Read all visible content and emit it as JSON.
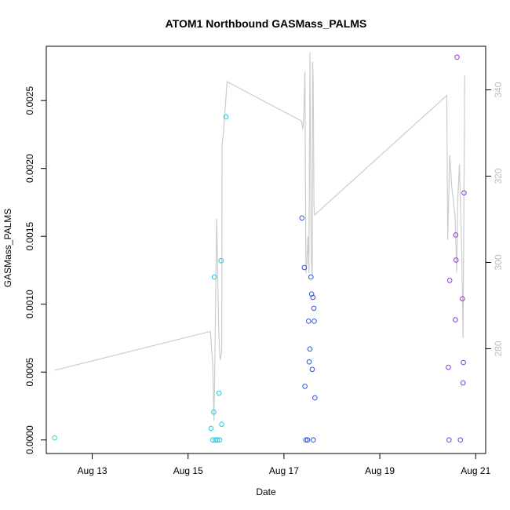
{
  "chart_data": {
    "type": "scatter",
    "title": "ATOM1 Northbound GASMass_PALMS",
    "xlabel": "Date",
    "ylabel": "GASMass_PALMS",
    "x_axis": {
      "type": "date",
      "range": [
        "2016-08-12T01:00",
        "2016-08-21T05:00"
      ],
      "ticks": [
        "2016-08-13",
        "2016-08-15",
        "2016-08-17",
        "2016-08-19",
        "2016-08-21"
      ],
      "tick_labels": [
        "Aug 13",
        "Aug 15",
        "Aug 17",
        "Aug 19",
        "Aug 21"
      ]
    },
    "y_axis": {
      "range": [
        -0.0001,
        0.0029
      ],
      "ticks": [
        0,
        0.0005,
        0.001,
        0.0015,
        0.002,
        0.0025
      ],
      "tick_labels": [
        "0.0000",
        "0.0005",
        "0.0010",
        "0.0015",
        "0.0020",
        "0.0025"
      ]
    },
    "y2_axis": {
      "range": [
        255.7,
        350.1
      ],
      "ticks": [
        280,
        300,
        320,
        340
      ],
      "tick_labels": [
        "280",
        "300",
        "320",
        "340"
      ],
      "color": "#bdbdbd"
    },
    "grid": false,
    "legend": "none",
    "point_series": [
      {
        "color": "#35d8d0",
        "points": [
          {
            "x": "2016-08-12T05:10",
            "y": 1.5e-05
          }
        ]
      },
      {
        "color": "#1ec8e8",
        "points": [
          {
            "x": "2016-08-15T11:30",
            "y": 8.5e-05
          },
          {
            "x": "2016-08-15T12:20",
            "y": 0.0
          },
          {
            "x": "2016-08-15T12:50",
            "y": 0.000205
          },
          {
            "x": "2016-08-15T13:10",
            "y": 0.0012
          },
          {
            "x": "2016-08-15T13:40",
            "y": 0.0
          },
          {
            "x": "2016-08-15T14:40",
            "y": 0.0
          },
          {
            "x": "2016-08-15T15:30",
            "y": 0.000345
          },
          {
            "x": "2016-08-15T15:50",
            "y": 0.0
          },
          {
            "x": "2016-08-15T16:30",
            "y": 0.00132
          },
          {
            "x": "2016-08-15T16:50",
            "y": 0.000115
          },
          {
            "x": "2016-08-15T19:00",
            "y": 0.00238
          }
        ]
      },
      {
        "color": "#2f56e0",
        "points": [
          {
            "x": "2016-08-17T09:00",
            "y": 0.001635
          },
          {
            "x": "2016-08-17T10:10",
            "y": 0.00127
          },
          {
            "x": "2016-08-17T10:30",
            "y": 0.000395
          },
          {
            "x": "2016-08-17T11:00",
            "y": 0.0
          },
          {
            "x": "2016-08-17T11:50",
            "y": 0.0
          },
          {
            "x": "2016-08-17T12:20",
            "y": 0.000875
          },
          {
            "x": "2016-08-17T12:40",
            "y": 0.000575
          },
          {
            "x": "2016-08-17T13:00",
            "y": 0.00067
          },
          {
            "x": "2016-08-17T13:30",
            "y": 0.0012
          },
          {
            "x": "2016-08-17T13:50",
            "y": 0.001075
          },
          {
            "x": "2016-08-17T14:10",
            "y": 0.00052
          },
          {
            "x": "2016-08-17T14:30",
            "y": 0.00105
          },
          {
            "x": "2016-08-17T14:40",
            "y": 0.0
          },
          {
            "x": "2016-08-17T15:00",
            "y": 0.00097
          },
          {
            "x": "2016-08-17T15:10",
            "y": 0.000875
          },
          {
            "x": "2016-08-17T15:30",
            "y": 0.00031
          }
        ]
      },
      {
        "color": "#8a3ad8",
        "points": [
          {
            "x": "2016-08-20T10:20",
            "y": 0.000535
          },
          {
            "x": "2016-08-20T10:40",
            "y": 0.0
          },
          {
            "x": "2016-08-20T11:00",
            "y": 0.001175
          },
          {
            "x": "2016-08-20T13:50",
            "y": 0.000885
          },
          {
            "x": "2016-08-20T14:00",
            "y": 0.00151
          },
          {
            "x": "2016-08-20T14:10",
            "y": 0.001325
          },
          {
            "x": "2016-08-20T14:40",
            "y": 0.00282
          },
          {
            "x": "2016-08-20T16:20",
            "y": 0.0
          },
          {
            "x": "2016-08-20T17:20",
            "y": 0.00104
          },
          {
            "x": "2016-08-20T17:40",
            "y": 0.00042
          },
          {
            "x": "2016-08-20T17:50",
            "y": 0.00057
          },
          {
            "x": "2016-08-20T18:10",
            "y": 0.00182
          }
        ]
      }
    ],
    "line_series": {
      "color": "#cccccc",
      "axis": "right",
      "points": [
        {
          "x": "2016-08-12T05:10",
          "y": 275.0
        },
        {
          "x": "2016-08-15T11:10",
          "y": 284.0
        },
        {
          "x": "2016-08-15T12:20",
          "y": 276.4
        },
        {
          "x": "2016-08-15T13:00",
          "y": 263.3
        },
        {
          "x": "2016-08-15T14:20",
          "y": 310.1
        },
        {
          "x": "2016-08-15T15:20",
          "y": 283.9
        },
        {
          "x": "2016-08-15T16:00",
          "y": 277.3
        },
        {
          "x": "2016-08-15T16:50",
          "y": 279.4
        },
        {
          "x": "2016-08-15T17:00",
          "y": 327.2
        },
        {
          "x": "2016-08-15T17:40",
          "y": 329.8
        },
        {
          "x": "2016-08-15T19:30",
          "y": 341.9
        },
        {
          "x": "2016-08-17T08:40",
          "y": 332.8
        },
        {
          "x": "2016-08-17T09:30",
          "y": 330.9
        },
        {
          "x": "2016-08-17T10:00",
          "y": 335.3
        },
        {
          "x": "2016-08-17T10:30",
          "y": 344.2
        },
        {
          "x": "2016-08-17T11:00",
          "y": 297.5
        },
        {
          "x": "2016-08-17T11:30",
          "y": 300.0
        },
        {
          "x": "2016-08-17T12:00",
          "y": 306.1
        },
        {
          "x": "2016-08-17T12:30",
          "y": 297.5
        },
        {
          "x": "2016-08-17T13:00",
          "y": 348.7
        },
        {
          "x": "2016-08-17T13:40",
          "y": 300.6
        },
        {
          "x": "2016-08-17T14:10",
          "y": 296.9
        },
        {
          "x": "2016-08-17T14:20",
          "y": 346.5
        },
        {
          "x": "2016-08-17T14:40",
          "y": 341.9
        },
        {
          "x": "2016-08-17T15:00",
          "y": 313.5
        },
        {
          "x": "2016-08-17T15:20",
          "y": 311.0
        },
        {
          "x": "2016-08-20T09:30",
          "y": 338.7
        },
        {
          "x": "2016-08-20T10:00",
          "y": 305.3
        },
        {
          "x": "2016-08-20T11:00",
          "y": 324.9
        },
        {
          "x": "2016-08-20T12:00",
          "y": 317.6
        },
        {
          "x": "2016-08-20T12:50",
          "y": 314.4
        },
        {
          "x": "2016-08-20T13:40",
          "y": 310.5
        },
        {
          "x": "2016-08-20T14:30",
          "y": 297.6
        },
        {
          "x": "2016-08-20T15:00",
          "y": 314.4
        },
        {
          "x": "2016-08-20T15:50",
          "y": 322.7
        },
        {
          "x": "2016-08-20T17:00",
          "y": 302.3
        },
        {
          "x": "2016-08-20T17:40",
          "y": 282.5
        },
        {
          "x": "2016-08-20T18:30",
          "y": 343.3
        }
      ]
    }
  }
}
